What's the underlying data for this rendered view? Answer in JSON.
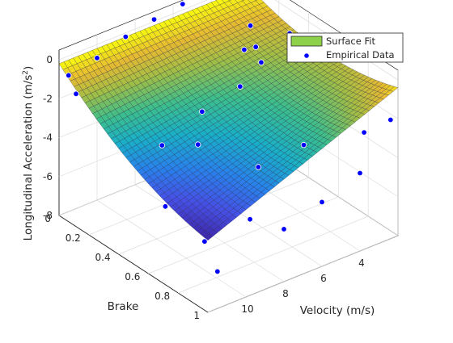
{
  "chart_data": {
    "type": "surface3d",
    "title": "",
    "xlabel": "Velocity (m/s)",
    "ylabel": "Brake",
    "zlabel_main": "Longitudinal Acceleration (m/s",
    "zlabel_sup": "2",
    "zlabel_close": ")",
    "x_range": [
      2,
      12
    ],
    "y_range": [
      0,
      1
    ],
    "z_range": [
      -8,
      0.5
    ],
    "x_ticks": [
      4,
      6,
      8,
      10
    ],
    "y_ticks": [
      0,
      0.2,
      0.4,
      0.6,
      0.8,
      1
    ],
    "z_ticks": [
      0,
      -2,
      -4,
      -6,
      -8
    ],
    "grid": true,
    "colormap": "parula",
    "legend_placement": "top-right",
    "legend": {
      "surface_label": "Surface Fit",
      "points_label": "Empirical Data",
      "surface_color": "#8dd04a",
      "points_color": "#0000ff"
    },
    "surface_fit": {
      "name": "Surface Fit",
      "x_grid": [
        2,
        12
      ],
      "y_grid": [
        0,
        1
      ],
      "model": "z = -0.2 - 7.1*b*(0.45 + 0.55*((v-2)/10)) + 3.0*b*b"
    },
    "empirical_data": {
      "name": "Empirical Data",
      "points": [
        {
          "x": 11.5,
          "y": 0.0,
          "z": -1.0
        },
        {
          "x": 10.0,
          "y": 0.0,
          "z": -0.7
        },
        {
          "x": 8.5,
          "y": 0.0,
          "z": -0.2
        },
        {
          "x": 7.0,
          "y": 0.0,
          "z": 0.1
        },
        {
          "x": 5.5,
          "y": 0.0,
          "z": 0.3
        },
        {
          "x": 4.0,
          "y": 0.0,
          "z": 0.4
        },
        {
          "x": 2.5,
          "y": 0.0,
          "z": 0.5
        },
        {
          "x": 11.5,
          "y": 0.05,
          "z": -1.7
        },
        {
          "x": 3.5,
          "y": 0.2,
          "z": -0.6
        },
        {
          "x": 4.0,
          "y": 0.3,
          "z": -1.0
        },
        {
          "x": 5.0,
          "y": 0.35,
          "z": -0.5
        },
        {
          "x": 4.5,
          "y": 0.4,
          "z": -1.1
        },
        {
          "x": 3.0,
          "y": 0.4,
          "z": -0.2
        },
        {
          "x": 6.0,
          "y": 0.45,
          "z": -1.5
        },
        {
          "x": 8.0,
          "y": 0.45,
          "z": -2.0
        },
        {
          "x": 10.5,
          "y": 0.5,
          "z": -2.5
        },
        {
          "x": 9.0,
          "y": 0.55,
          "z": -2.8
        },
        {
          "x": 11.5,
          "y": 0.65,
          "z": -4.5
        },
        {
          "x": 7.0,
          "y": 0.7,
          "z": -4.0
        },
        {
          "x": 5.0,
          "y": 0.75,
          "z": -3.4
        },
        {
          "x": 3.0,
          "y": 0.9,
          "z": -2.8
        },
        {
          "x": 2.0,
          "y": 0.95,
          "z": -2.3
        },
        {
          "x": 11.0,
          "y": 0.85,
          "z": -5.5
        },
        {
          "x": 9.0,
          "y": 0.9,
          "z": -4.9
        },
        {
          "x": 6.0,
          "y": 1.0,
          "z": -4.7
        },
        {
          "x": 8.0,
          "y": 1.0,
          "z": -5.3
        },
        {
          "x": 11.5,
          "y": 1.0,
          "z": -6.1
        },
        {
          "x": 4.0,
          "y": 1.0,
          "z": -4.0
        }
      ]
    }
  }
}
